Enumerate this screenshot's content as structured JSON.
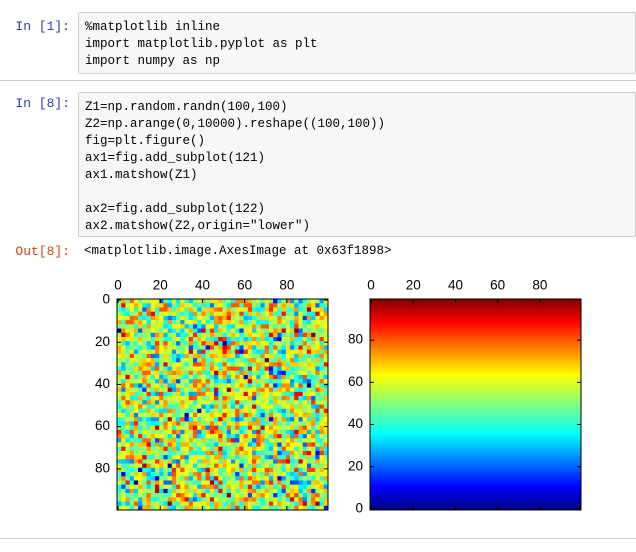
{
  "cells": [
    {
      "prompt": "In [1]:",
      "blocks": [
        [
          "%matplotlib inline",
          "import matplotlib.pyplot as plt",
          "import numpy as np"
        ]
      ]
    },
    {
      "prompt": "In [8]:",
      "blocks": [
        [
          "Z1=np.random.randn(100,100)",
          "Z2=np.arange(0,10000).reshape((100,100))",
          "fig=plt.figure()",
          "ax1=fig.add_subplot(121)",
          "ax1.matshow(Z1)"
        ],
        [
          "ax2=fig.add_subplot(122)",
          "ax2.matshow(Z2,origin=\"lower\")"
        ]
      ]
    }
  ],
  "output": {
    "prompt": "Out[8]:",
    "text": "<matplotlib.image.AxesImage at 0x63f1898>"
  },
  "chart_data": [
    {
      "type": "matshow",
      "image": "noise",
      "xlim": [
        -0.5,
        99.5
      ],
      "ylim": [
        99.5,
        -0.5
      ],
      "xticks": [
        0,
        20,
        40,
        60,
        80
      ],
      "yticks": [
        0,
        20,
        40,
        60,
        80
      ]
    },
    {
      "type": "matshow",
      "image": "gradient",
      "xlim": [
        -0.5,
        99.5
      ],
      "ylim": [
        -0.5,
        99.5
      ],
      "xticks": [
        0,
        20,
        40,
        60,
        80
      ],
      "yticks": [
        0,
        20,
        40,
        60,
        80
      ]
    }
  ]
}
